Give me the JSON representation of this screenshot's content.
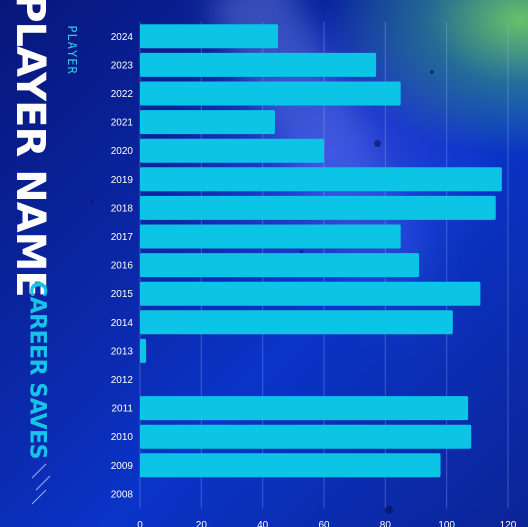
{
  "header": {
    "subtitle": "PLAYER",
    "title": "PLAYER NAME",
    "chart_label": "CAREER SAVES"
  },
  "colors": {
    "bar": "#0cc4e6",
    "background": "#0b2bb0",
    "accent_green": "#7ed957",
    "text": "#ffffff",
    "label_cyan": "#17c3e6"
  },
  "chart_data": {
    "type": "bar",
    "orientation": "horizontal",
    "categories": [
      "2024",
      "2023",
      "2022",
      "2021",
      "2020",
      "2019",
      "2018",
      "2017",
      "2016",
      "2015",
      "2014",
      "2013",
      "2012",
      "2011",
      "2010",
      "2009",
      "2008"
    ],
    "values": [
      45,
      77,
      85,
      44,
      60,
      118,
      116,
      85,
      91,
      111,
      102,
      2,
      0,
      107,
      108,
      98,
      0
    ],
    "title": "CAREER SAVES",
    "xlabel": "",
    "ylabel": "",
    "xlim": [
      0,
      120
    ],
    "xticks": [
      0,
      20,
      40,
      60,
      80,
      100,
      120
    ],
    "grid": "vertical",
    "legend": "none"
  }
}
